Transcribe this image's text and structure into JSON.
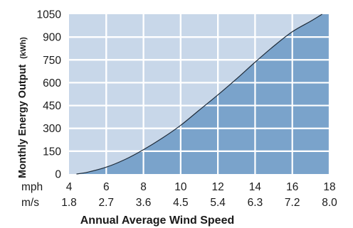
{
  "chart_data": {
    "type": "area",
    "title": "",
    "xlabel": "Annual Average Wind Speed",
    "ylabel": "Monthly Energy Output",
    "ylabel_unit": "(kWh)",
    "x_unit_primary": "mph",
    "x_unit_secondary": "m/s",
    "xlim": [
      4,
      18
    ],
    "ylim": [
      0,
      1050
    ],
    "x_ticks": [
      4,
      6,
      8,
      10,
      12,
      14,
      16,
      18
    ],
    "x_ticks_secondary": [
      "1.8",
      "2.7",
      "3.6",
      "4.5",
      "5.4",
      "6.3",
      "7.2",
      "8.0"
    ],
    "y_ticks": [
      0,
      150,
      300,
      450,
      600,
      750,
      900,
      1050
    ],
    "grid": true,
    "series": [
      {
        "x": [
          4.4,
          5,
          6,
          7,
          8,
          9,
          10,
          11,
          12,
          13,
          14,
          15,
          16,
          17,
          17.6
        ],
        "values": [
          0,
          12,
          45,
          95,
          160,
          235,
          320,
          420,
          520,
          625,
          735,
          840,
          935,
          1005,
          1050
        ]
      }
    ],
    "colors": {
      "background": "#c8d7e9",
      "fill": "#7aa3cb",
      "line": "#1f2c3a",
      "grid": "#ffffff"
    }
  }
}
